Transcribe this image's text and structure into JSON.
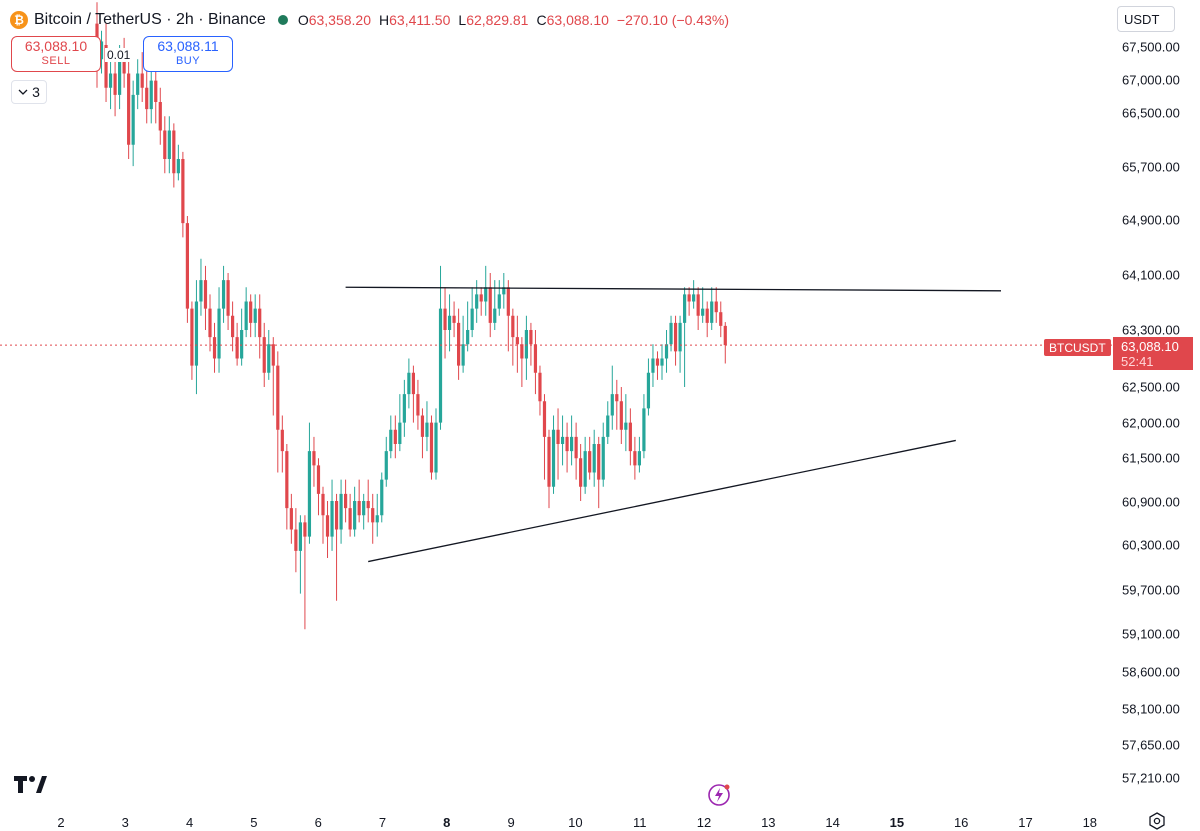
{
  "header": {
    "logo_glyph": "₿",
    "symbol": "Bitcoin / TetherUS · 2h · Binance",
    "open_label": "O",
    "open": "63,358.20",
    "high_label": "H",
    "high": "63,411.50",
    "low_label": "L",
    "low": "62,829.81",
    "close_label": "C",
    "close": "63,088.10",
    "change": "−270.10 (−0.43%)"
  },
  "trade": {
    "sell_price": "63,088.10",
    "sell_label": "SELL",
    "buy_price": "63,088.11",
    "buy_label": "BUY",
    "spread": "0.01"
  },
  "indicators_toggle": {
    "icon": "chevron-down-icon",
    "count": "3"
  },
  "currency": "USDT",
  "price_axis": {
    "ticks": [
      "67,500.00",
      "67,000.00",
      "66,500.00",
      "65,700.00",
      "64,900.00",
      "64,100.00",
      "63,300.00",
      "62,500.00",
      "62,000.00",
      "61,500.00",
      "60,900.00",
      "60,300.00",
      "59,700.00",
      "59,100.00",
      "58,600.00",
      "58,100.00",
      "57,650.00",
      "57,210.00"
    ],
    "last_price_symbol": "BTCUSDT",
    "last_price": "63,088.10",
    "countdown": "52:41"
  },
  "time_axis": {
    "ticks": [
      "2",
      "3",
      "4",
      "5",
      "6",
      "7",
      "8",
      "9",
      "10",
      "11",
      "12",
      "13",
      "14",
      "15",
      "16",
      "17",
      "18"
    ],
    "bold_ticks": [
      "8",
      "15"
    ]
  },
  "colors": {
    "up": "#26a69a",
    "down": "#e0474c",
    "trendline": "#131722"
  },
  "chart_data": {
    "type": "candlestick",
    "candles": [
      [
        67600,
        67100,
        67900,
        66700
      ],
      [
        67100,
        67350,
        67500,
        66900
      ],
      [
        67300,
        66700,
        67600,
        66500
      ],
      [
        66700,
        66900,
        67100,
        66400
      ],
      [
        66900,
        66600,
        67200,
        66300
      ],
      [
        66600,
        67100,
        67300,
        66400
      ],
      [
        67100,
        66900,
        67400,
        66700
      ],
      [
        66900,
        65900,
        67100,
        65700
      ],
      [
        65900,
        66600,
        66800,
        65600
      ],
      [
        66600,
        66900,
        67100,
        66400
      ],
      [
        66900,
        66700,
        67200,
        66500
      ],
      [
        66700,
        66400,
        67000,
        66200
      ],
      [
        66400,
        66800,
        67000,
        66200
      ],
      [
        66800,
        66500,
        67000,
        66200
      ],
      [
        66500,
        66100,
        66700,
        65900
      ],
      [
        66100,
        65700,
        66300,
        65500
      ],
      [
        65700,
        66100,
        66300,
        65500
      ],
      [
        66100,
        65500,
        66200,
        65300
      ],
      [
        65500,
        65700,
        65900,
        65400
      ],
      [
        65700,
        64800,
        65800,
        64600
      ],
      [
        64800,
        63600,
        64900,
        63400
      ],
      [
        63600,
        62800,
        63700,
        62600
      ],
      [
        62800,
        63700,
        64000,
        62400
      ],
      [
        63700,
        64000,
        64300,
        63500
      ],
      [
        64000,
        63600,
        64200,
        63300
      ],
      [
        63600,
        63200,
        63800,
        63000
      ],
      [
        63200,
        62900,
        63400,
        62700
      ],
      [
        62900,
        63600,
        63900,
        62700
      ],
      [
        63600,
        64000,
        64200,
        63400
      ],
      [
        64000,
        63500,
        64100,
        63300
      ],
      [
        63500,
        63200,
        63700,
        63000
      ],
      [
        63200,
        62900,
        63400,
        62800
      ],
      [
        62900,
        63300,
        63600,
        62800
      ],
      [
        63300,
        63700,
        63900,
        63200
      ],
      [
        63700,
        63400,
        63800,
        63200
      ],
      [
        63400,
        63600,
        63800,
        63200
      ],
      [
        63600,
        63200,
        63800,
        62900
      ],
      [
        63200,
        62700,
        63400,
        62500
      ],
      [
        62700,
        63100,
        63300,
        62600
      ],
      [
        63100,
        62800,
        63200,
        62100
      ],
      [
        62800,
        61900,
        63000,
        61300
      ],
      [
        61900,
        61600,
        62100,
        61300
      ],
      [
        61600,
        60800,
        61700,
        60500
      ],
      [
        60800,
        60500,
        61000,
        60300
      ],
      [
        60500,
        60200,
        60800,
        59900
      ],
      [
        60200,
        60600,
        60700,
        59600
      ],
      [
        60600,
        60400,
        60700,
        59100
      ],
      [
        60400,
        61600,
        62000,
        60300
      ],
      [
        61600,
        61400,
        61800,
        61100
      ],
      [
        61400,
        61000,
        61500,
        60700
      ],
      [
        61000,
        60700,
        61100,
        60300
      ],
      [
        60700,
        60400,
        60900,
        60100
      ],
      [
        60400,
        60900,
        61200,
        60200
      ],
      [
        60900,
        60500,
        61000,
        59500
      ],
      [
        60500,
        61000,
        61200,
        60300
      ],
      [
        61000,
        60800,
        61200,
        60600
      ],
      [
        60800,
        60500,
        61000,
        60400
      ],
      [
        60500,
        60900,
        61100,
        60400
      ],
      [
        60900,
        60700,
        61200,
        60600
      ],
      [
        60700,
        60900,
        61000,
        60500
      ],
      [
        60900,
        60800,
        61200,
        60600
      ],
      [
        60800,
        60600,
        61000,
        60300
      ],
      [
        60600,
        60700,
        61000,
        60400
      ],
      [
        60700,
        61200,
        61300,
        60600
      ],
      [
        61200,
        61600,
        61800,
        61100
      ],
      [
        61600,
        61900,
        62100,
        61500
      ],
      [
        61900,
        61700,
        62100,
        61500
      ],
      [
        61700,
        62000,
        62400,
        61600
      ],
      [
        62000,
        62400,
        62600,
        61800
      ],
      [
        62400,
        62700,
        62900,
        62200
      ],
      [
        62700,
        62400,
        62800,
        62000
      ],
      [
        62400,
        62100,
        62600,
        61900
      ],
      [
        62100,
        61800,
        62200,
        61500
      ],
      [
        61800,
        62000,
        62300,
        61600
      ],
      [
        62000,
        61300,
        62100,
        61200
      ],
      [
        61300,
        62000,
        62200,
        61200
      ],
      [
        62000,
        63600,
        64200,
        61900
      ],
      [
        63600,
        63300,
        63900,
        62900
      ],
      [
        63300,
        63500,
        63800,
        63000
      ],
      [
        63500,
        63400,
        63700,
        63200
      ],
      [
        63400,
        62800,
        63600,
        62600
      ],
      [
        62800,
        63100,
        63500,
        62700
      ],
      [
        63100,
        63300,
        63700,
        63000
      ],
      [
        63300,
        63600,
        63900,
        63200
      ],
      [
        63600,
        63800,
        64000,
        63400
      ],
      [
        63800,
        63700,
        63900,
        63500
      ],
      [
        63700,
        63900,
        64200,
        63500
      ],
      [
        63900,
        63400,
        64100,
        63200
      ],
      [
        63400,
        63600,
        64000,
        63300
      ],
      [
        63600,
        63800,
        64000,
        63500
      ],
      [
        63800,
        63900,
        64100,
        63600
      ],
      [
        63900,
        63500,
        64000,
        63000
      ],
      [
        63500,
        63200,
        63600,
        62800
      ],
      [
        63200,
        63100,
        63500,
        62700
      ],
      [
        63100,
        62900,
        63200,
        62500
      ],
      [
        62900,
        63300,
        63500,
        62600
      ],
      [
        63300,
        63100,
        63400,
        62800
      ],
      [
        63100,
        62700,
        63300,
        62400
      ],
      [
        62700,
        62300,
        62800,
        62100
      ],
      [
        62300,
        61800,
        62400,
        61200
      ],
      [
        61800,
        61100,
        61900,
        60800
      ],
      [
        61100,
        61900,
        62100,
        61000
      ],
      [
        61900,
        61700,
        62200,
        61200
      ],
      [
        61700,
        61800,
        62100,
        61400
      ],
      [
        61800,
        61600,
        62000,
        61300
      ],
      [
        61600,
        61800,
        62100,
        61400
      ],
      [
        61800,
        61500,
        62000,
        61200
      ],
      [
        61500,
        61100,
        61700,
        60900
      ],
      [
        61100,
        61600,
        61800,
        61000
      ],
      [
        61600,
        61300,
        61800,
        61200
      ],
      [
        61300,
        61700,
        61900,
        61100
      ],
      [
        61700,
        61200,
        61800,
        60800
      ],
      [
        61200,
        61800,
        62000,
        61100
      ],
      [
        61800,
        62100,
        62300,
        61700
      ],
      [
        62100,
        62400,
        62800,
        61900
      ],
      [
        62400,
        62300,
        62600,
        61900
      ],
      [
        62300,
        61900,
        62500,
        61700
      ],
      [
        61900,
        62000,
        62400,
        61600
      ],
      [
        62000,
        61600,
        62200,
        61400
      ],
      [
        61600,
        61400,
        61800,
        61200
      ],
      [
        61400,
        61600,
        61800,
        61300
      ],
      [
        61600,
        62200,
        62400,
        61500
      ],
      [
        62200,
        62700,
        62900,
        62100
      ],
      [
        62700,
        62900,
        63100,
        62500
      ],
      [
        62900,
        62800,
        63000,
        62600
      ],
      [
        62800,
        62900,
        63100,
        62600
      ],
      [
        62900,
        63100,
        63300,
        62700
      ],
      [
        63100,
        63400,
        63500,
        63000
      ],
      [
        63400,
        63000,
        63500,
        62800
      ],
      [
        63000,
        63400,
        63500,
        62700
      ],
      [
        63400,
        63800,
        63900,
        62500
      ],
      [
        63800,
        63700,
        63900,
        63500
      ],
      [
        63700,
        63800,
        64000,
        63600
      ],
      [
        63800,
        63500,
        63900,
        63300
      ],
      [
        63500,
        63600,
        63900,
        63400
      ],
      [
        63600,
        63400,
        63700,
        63200
      ],
      [
        63400,
        63700,
        63900,
        63300
      ],
      [
        63700,
        63550,
        63900,
        63400
      ],
      [
        63550,
        63358,
        63700,
        63200
      ],
      [
        63358,
        63088,
        63411,
        62830
      ]
    ],
    "trendlines": [
      {
        "from": {
          "bar": 55,
          "price": 63900
        },
        "to": {
          "bar": 200,
          "price": 63850
        }
      },
      {
        "from": {
          "bar": 60,
          "price": 60050
        },
        "to": {
          "bar": 190,
          "price": 61750
        }
      }
    ],
    "last_price": 63088.1
  }
}
